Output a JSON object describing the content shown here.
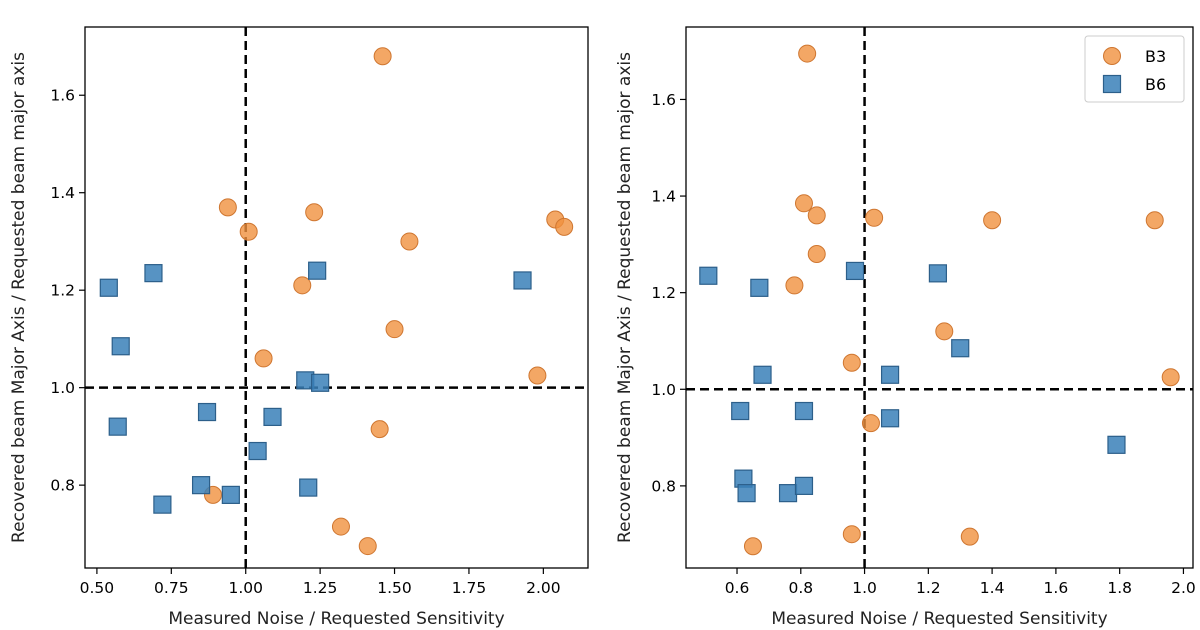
{
  "colors": {
    "b3": "#f0913f",
    "b6": "#3a80b9",
    "b3_edge": "#cf7630",
    "b6_edge": "#2c5f8a"
  },
  "chart_data": [
    {
      "type": "scatter",
      "xlabel": "Measured Noise / Requested Sensitivity",
      "ylabel": "Recovered beam Major Axis / Requested beam major axis",
      "xlim": [
        0.46,
        2.15
      ],
      "ylim": [
        0.63,
        1.74
      ],
      "xticks": [
        0.5,
        0.75,
        1.0,
        1.25,
        1.5,
        1.75,
        2.0
      ],
      "xtick_labels": [
        "0.50",
        "0.75",
        "1.00",
        "1.25",
        "1.50",
        "1.75",
        "2.00"
      ],
      "yticks": [
        0.8,
        1.0,
        1.2,
        1.4,
        1.6
      ],
      "ytick_labels": [
        "0.8",
        "1.0",
        "1.2",
        "1.4",
        "1.6"
      ],
      "ref_lines": {
        "x": 1.0,
        "y": 1.0
      },
      "legend": false,
      "series": [
        {
          "name": "B3",
          "marker": "circle",
          "points": [
            {
              "x": 1.46,
              "y": 1.68
            },
            {
              "x": 0.94,
              "y": 1.37
            },
            {
              "x": 1.23,
              "y": 1.36
            },
            {
              "x": 1.01,
              "y": 1.32
            },
            {
              "x": 1.55,
              "y": 1.3
            },
            {
              "x": 2.04,
              "y": 1.345
            },
            {
              "x": 2.07,
              "y": 1.33
            },
            {
              "x": 1.19,
              "y": 1.21
            },
            {
              "x": 1.5,
              "y": 1.12
            },
            {
              "x": 1.06,
              "y": 1.06
            },
            {
              "x": 1.98,
              "y": 1.025
            },
            {
              "x": 1.45,
              "y": 0.915
            },
            {
              "x": 0.89,
              "y": 0.78
            },
            {
              "x": 1.32,
              "y": 0.715
            },
            {
              "x": 1.41,
              "y": 0.675
            }
          ]
        },
        {
          "name": "B6",
          "marker": "square",
          "points": [
            {
              "x": 0.54,
              "y": 1.205
            },
            {
              "x": 0.69,
              "y": 1.235
            },
            {
              "x": 0.58,
              "y": 1.085
            },
            {
              "x": 1.24,
              "y": 1.24
            },
            {
              "x": 1.93,
              "y": 1.22
            },
            {
              "x": 1.2,
              "y": 1.015
            },
            {
              "x": 1.25,
              "y": 1.01
            },
            {
              "x": 0.57,
              "y": 0.92
            },
            {
              "x": 0.87,
              "y": 0.95
            },
            {
              "x": 1.09,
              "y": 0.94
            },
            {
              "x": 1.04,
              "y": 0.87
            },
            {
              "x": 0.85,
              "y": 0.8
            },
            {
              "x": 0.95,
              "y": 0.78
            },
            {
              "x": 0.72,
              "y": 0.76
            },
            {
              "x": 1.21,
              "y": 0.795
            }
          ]
        }
      ]
    },
    {
      "type": "scatter",
      "xlabel": "Measured Noise / Requested Sensitivity",
      "ylabel": "Recovered beam Major Axis / Requested beam major axis",
      "xlim": [
        0.44,
        2.03
      ],
      "ylim": [
        0.63,
        1.75
      ],
      "xticks": [
        0.6,
        0.8,
        1.0,
        1.2,
        1.4,
        1.6,
        1.8,
        2.0
      ],
      "xtick_labels": [
        "0.6",
        "0.8",
        "1.0",
        "1.2",
        "1.4",
        "1.6",
        "1.8",
        "2.0"
      ],
      "yticks": [
        0.8,
        1.0,
        1.2,
        1.4,
        1.6
      ],
      "ytick_labels": [
        "0.8",
        "1.0",
        "1.2",
        "1.4",
        "1.6"
      ],
      "ref_lines": {
        "x": 1.0,
        "y": 1.0
      },
      "legend": true,
      "legend_position": "top-right",
      "series": [
        {
          "name": "B3",
          "marker": "circle",
          "points": [
            {
              "x": 0.82,
              "y": 1.695
            },
            {
              "x": 0.81,
              "y": 1.385
            },
            {
              "x": 0.85,
              "y": 1.36
            },
            {
              "x": 1.03,
              "y": 1.355
            },
            {
              "x": 1.4,
              "y": 1.35
            },
            {
              "x": 1.91,
              "y": 1.35
            },
            {
              "x": 0.85,
              "y": 1.28
            },
            {
              "x": 0.78,
              "y": 1.215
            },
            {
              "x": 1.25,
              "y": 1.12
            },
            {
              "x": 0.96,
              "y": 1.055
            },
            {
              "x": 1.96,
              "y": 1.025
            },
            {
              "x": 1.02,
              "y": 0.93
            },
            {
              "x": 0.65,
              "y": 0.675
            },
            {
              "x": 0.96,
              "y": 0.7
            },
            {
              "x": 1.33,
              "y": 0.695
            }
          ]
        },
        {
          "name": "B6",
          "marker": "square",
          "points": [
            {
              "x": 0.51,
              "y": 1.235
            },
            {
              "x": 0.67,
              "y": 1.21
            },
            {
              "x": 0.97,
              "y": 1.245
            },
            {
              "x": 1.23,
              "y": 1.24
            },
            {
              "x": 1.3,
              "y": 1.085
            },
            {
              "x": 0.68,
              "y": 1.03
            },
            {
              "x": 1.08,
              "y": 1.03
            },
            {
              "x": 0.61,
              "y": 0.955
            },
            {
              "x": 0.81,
              "y": 0.955
            },
            {
              "x": 1.08,
              "y": 0.94
            },
            {
              "x": 1.79,
              "y": 0.885
            },
            {
              "x": 0.62,
              "y": 0.815
            },
            {
              "x": 0.63,
              "y": 0.785
            },
            {
              "x": 0.76,
              "y": 0.785
            },
            {
              "x": 0.81,
              "y": 0.8
            }
          ]
        }
      ]
    }
  ]
}
